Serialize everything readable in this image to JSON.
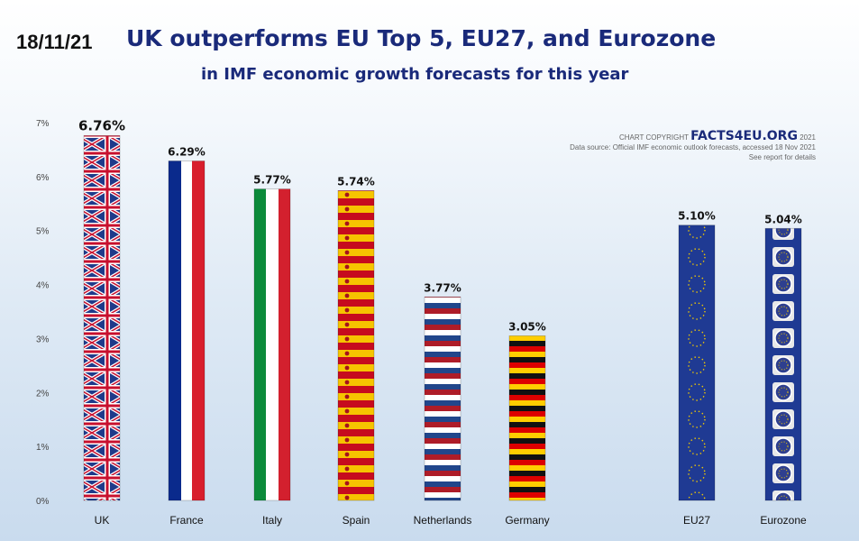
{
  "date": "18/11/21",
  "title": "UK outperforms EU Top 5, EU27, and Eurozone",
  "subtitle": "in IMF economic growth forecasts for this year",
  "copyright": {
    "prefix": "CHART COPYRIGHT",
    "brand": "FACTS4EU.ORG",
    "year": "2021",
    "source_line": "Data source: Official IMF economic outlook forecasts,  accessed 18 Nov 2021",
    "details_line": "See report for details"
  },
  "chart_data": {
    "type": "bar",
    "title": "UK outperforms EU Top 5, EU27, and Eurozone",
    "subtitle": "in IMF economic growth forecasts for this year",
    "categories": [
      "UK",
      "France",
      "Italy",
      "Spain",
      "Netherlands",
      "Germany",
      "EU27",
      "Eurozone"
    ],
    "values": [
      6.76,
      6.29,
      5.77,
      5.74,
      3.77,
      3.05,
      5.1,
      5.04
    ],
    "value_labels": [
      "6.76%",
      "6.29%",
      "5.77%",
      "5.74%",
      "3.77%",
      "3.05%",
      "5.10%",
      "5.04%"
    ],
    "y_ticks": [
      "0%",
      "1%",
      "2%",
      "3%",
      "4%",
      "5%",
      "6%",
      "7%"
    ],
    "ylim": [
      0,
      7
    ],
    "xlabel": "",
    "ylabel": "",
    "grid": false,
    "legend": "none",
    "bar_patterns": [
      "uk-flag",
      "france-flag",
      "italy-flag",
      "spain-flag",
      "netherlands-flag",
      "germany-flag",
      "eu-flag",
      "euro-coin"
    ]
  }
}
